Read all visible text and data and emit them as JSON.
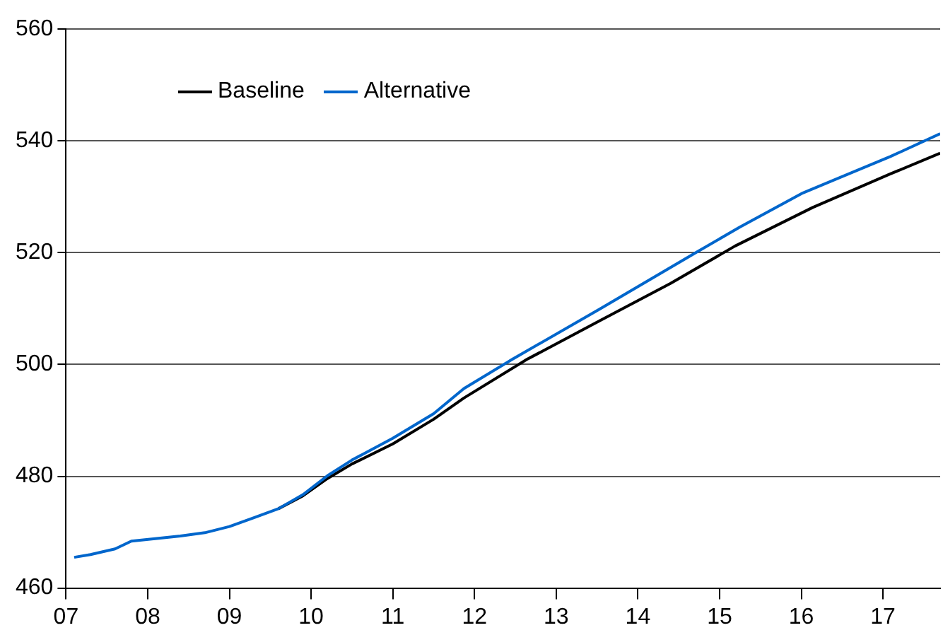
{
  "chart_data": {
    "type": "line",
    "xlim": [
      7,
      17.7
    ],
    "xticks": [
      {
        "value": 7,
        "label": "07"
      },
      {
        "value": 8,
        "label": "08"
      },
      {
        "value": 9,
        "label": "09"
      },
      {
        "value": 10,
        "label": "10"
      },
      {
        "value": 11,
        "label": "11"
      },
      {
        "value": 12,
        "label": "12"
      },
      {
        "value": 13,
        "label": "13"
      },
      {
        "value": 14,
        "label": "14"
      },
      {
        "value": 15,
        "label": "15"
      },
      {
        "value": 16,
        "label": "16"
      },
      {
        "value": 17,
        "label": "17"
      }
    ],
    "ylim": [
      460,
      560
    ],
    "yticks": [
      460,
      480,
      500,
      520,
      540,
      560
    ],
    "grid": "y",
    "legend": "top left",
    "marker": "none",
    "line_style": "solid",
    "series": [
      {
        "name": "Baseline",
        "color": "#000000",
        "x": [
          9.6,
          9.9,
          10.2,
          10.5,
          11.0,
          11.5,
          11.87,
          12.64,
          13.53,
          14.4,
          15.19,
          16.14,
          17.09,
          17.7
        ],
        "values": [
          474.2,
          476.5,
          479.6,
          482.2,
          485.8,
          490.2,
          494,
          500.9,
          507.8,
          514.5,
          521.2,
          528.1,
          534.1,
          537.8
        ]
      },
      {
        "name": "Alternative",
        "color": "#0066cc",
        "x": [
          7.1,
          7.3,
          7.6,
          7.8,
          8.07,
          8.4,
          8.7,
          9.0,
          9.3,
          9.6,
          9.9,
          10.2,
          10.5,
          11.0,
          11.5,
          11.87,
          12.46,
          13.53,
          14.72,
          15.25,
          16.02,
          17.09,
          17.7
        ],
        "values": [
          465.5,
          466,
          467,
          468.4,
          468.8,
          469.3,
          469.9,
          471,
          472.6,
          474.2,
          476.7,
          480.1,
          482.9,
          486.8,
          491.2,
          495.7,
          500.9,
          509.9,
          520.1,
          524.6,
          530.7,
          537.2,
          541.3
        ]
      }
    ]
  }
}
